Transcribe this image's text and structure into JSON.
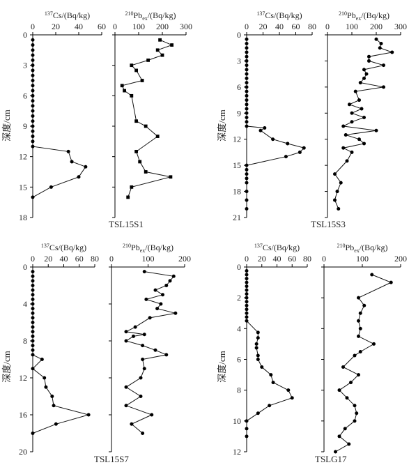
{
  "chart_data": [
    {
      "type": "line",
      "site": "TSL15S1",
      "ylabel": "深度/cm",
      "ylim": [
        18,
        0
      ],
      "yticks": [
        0,
        3,
        6,
        9,
        12,
        15,
        18
      ],
      "series": [
        {
          "name": "137Cs",
          "label_sup": "137",
          "label_main": "Cs/(Bq/kg)",
          "marker": "circle",
          "xlim": [
            0,
            60
          ],
          "xticks": [
            0,
            20,
            40,
            60
          ],
          "x": [
            0,
            0,
            0,
            0,
            0,
            0,
            0,
            0,
            0,
            0,
            0,
            0,
            0,
            0,
            0,
            0,
            0,
            0,
            0,
            0,
            0,
            0,
            31,
            34,
            46,
            40,
            16,
            0
          ],
          "y": [
            0.5,
            1.0,
            1.5,
            2.0,
            2.5,
            3.0,
            3.5,
            4.0,
            4.5,
            5.0,
            5.5,
            6.0,
            6.5,
            7.0,
            7.5,
            8.0,
            8.5,
            9.0,
            9.5,
            10.0,
            10.5,
            11.0,
            11.5,
            12.5,
            13.0,
            14.0,
            15.0,
            16.0
          ]
        },
        {
          "name": "210Pbex",
          "label_sup": "210",
          "label_main": "Pb",
          "label_sub": "ex",
          "label_tail": "/(Bq/kg)",
          "marker": "square",
          "xlim": [
            0,
            300
          ],
          "xticks": [
            0,
            100,
            200,
            300
          ],
          "x": [
            190,
            240,
            180,
            200,
            140,
            70,
            90,
            115,
            30,
            40,
            70,
            90,
            130,
            180,
            90,
            105,
            130,
            235,
            70,
            55
          ],
          "y": [
            0.5,
            1.0,
            1.5,
            2.0,
            2.5,
            3.0,
            3.5,
            4.5,
            5.0,
            5.5,
            6.0,
            8.5,
            9.0,
            10.0,
            11.5,
            12.5,
            13.5,
            14.0,
            15.0,
            16.0
          ]
        }
      ]
    },
    {
      "type": "line",
      "site": "TSL15S3",
      "ylabel": "深度/cm",
      "ylim": [
        21,
        0
      ],
      "yticks": [
        0,
        3,
        6,
        9,
        12,
        15,
        18,
        21
      ],
      "series": [
        {
          "name": "137Cs",
          "label_sup": "137",
          "label_main": "Cs/(Bq/kg)",
          "marker": "circle",
          "xlim": [
            0,
            80
          ],
          "xticks": [
            0,
            20,
            40,
            60,
            80
          ],
          "x": [
            0,
            0,
            0,
            0,
            0,
            0,
            0,
            0,
            0,
            0,
            0,
            0,
            0,
            0,
            0,
            0,
            0,
            0,
            0,
            0,
            0,
            22,
            17,
            32,
            50,
            70,
            65,
            48,
            0,
            0,
            0,
            0,
            0,
            0,
            0,
            0
          ],
          "y": [
            0.5,
            1.0,
            1.5,
            2.0,
            2.5,
            3.0,
            3.5,
            4.0,
            4.5,
            5.0,
            5.5,
            6.0,
            6.5,
            7.0,
            7.5,
            8.0,
            8.5,
            9.0,
            9.5,
            10.0,
            10.5,
            10.7,
            11.0,
            12.0,
            12.5,
            13.0,
            13.5,
            14.0,
            15.0,
            15.5,
            16.0,
            16.5,
            17.0,
            18.0,
            19.0,
            20.0
          ]
        },
        {
          "name": "210Pbex",
          "label_sup": "210",
          "label_main": "Pb",
          "label_sub": "ex",
          "label_tail": "/(Bq/kg)",
          "marker": "circle",
          "xlim": [
            0,
            300
          ],
          "xticks": [
            0,
            100,
            200,
            300
          ],
          "x": [
            200,
            220,
            215,
            265,
            170,
            170,
            230,
            150,
            160,
            150,
            135,
            230,
            115,
            130,
            90,
            140,
            100,
            150,
            100,
            65,
            200,
            75,
            130,
            150,
            65,
            100,
            80,
            30,
            55,
            40,
            30,
            45
          ],
          "y": [
            0.5,
            1.0,
            1.5,
            2.0,
            2.5,
            3.0,
            3.5,
            4.0,
            4.5,
            5.0,
            5.5,
            6.0,
            6.5,
            7.5,
            8.0,
            8.5,
            9.0,
            9.5,
            10.0,
            10.5,
            11.0,
            11.5,
            12.0,
            12.5,
            13.0,
            13.5,
            14.5,
            16.0,
            17.0,
            18.0,
            19.0,
            20.0
          ]
        }
      ]
    },
    {
      "type": "line",
      "site": "TSL15S7",
      "ylabel": "深度/cm",
      "ylim": [
        20,
        0
      ],
      "yticks": [
        0,
        4,
        8,
        12,
        16,
        20
      ],
      "series": [
        {
          "name": "137Cs",
          "label_sup": "137",
          "label_main": "Cs/(Bq/kg)",
          "marker": "circle",
          "xlim": [
            0,
            80
          ],
          "xticks": [
            0,
            20,
            40,
            60,
            80
          ],
          "x": [
            0,
            0,
            0,
            0,
            0,
            0,
            0,
            0,
            0,
            0,
            0,
            0,
            0,
            0,
            0,
            0,
            0,
            0,
            0,
            12,
            0,
            15,
            17,
            25,
            27,
            72,
            30,
            0
          ],
          "y": [
            0.5,
            1.0,
            1.5,
            2.0,
            2.5,
            3.0,
            3.5,
            4.0,
            4.5,
            5.0,
            5.5,
            6.0,
            6.5,
            7.0,
            7.5,
            8.0,
            8.5,
            9.0,
            9.5,
            10.0,
            11.0,
            12.0,
            13.0,
            14.0,
            15.0,
            16.0,
            17.0,
            18.0
          ]
        },
        {
          "name": "210Pbex",
          "label_sup": "210",
          "label_main": "Pb",
          "label_sub": "ex",
          "label_tail": "/(Bq/kg)",
          "marker": "circle",
          "xlim": [
            0,
            200
          ],
          "xticks": [
            0,
            100,
            200
          ],
          "x": [
            90,
            170,
            160,
            150,
            120,
            140,
            95,
            135,
            125,
            175,
            105,
            65,
            40,
            90,
            60,
            40,
            85,
            120,
            150,
            85,
            90,
            80,
            40,
            80,
            40,
            110,
            55,
            85
          ],
          "y": [
            0.5,
            1.0,
            1.5,
            2.0,
            2.5,
            3.0,
            3.5,
            4.0,
            4.5,
            5.0,
            5.5,
            6.5,
            7.0,
            7.3,
            7.5,
            8.0,
            8.5,
            9.0,
            9.5,
            10.0,
            11.0,
            12.0,
            13.0,
            14.0,
            15.0,
            16.0,
            17.0,
            18.0
          ]
        }
      ]
    },
    {
      "type": "line",
      "site": "TSLG17",
      "ylabel": "深度/cm",
      "ylim": [
        12,
        0
      ],
      "yticks": [
        0,
        2,
        4,
        6,
        8,
        10,
        12
      ],
      "series": [
        {
          "name": "137Cs",
          "label_sup": "137",
          "label_main": "Cs/(Bq/kg)",
          "marker": "circle",
          "xlim": [
            0,
            80
          ],
          "xticks": [
            0,
            20,
            40,
            60,
            80
          ],
          "x": [
            0,
            0,
            0,
            0,
            0,
            0,
            0,
            0,
            0,
            0,
            0,
            0,
            0,
            0,
            15,
            15,
            13,
            13,
            15,
            15,
            20,
            32,
            35,
            55,
            60,
            30,
            15,
            0,
            0,
            0
          ],
          "y": [
            0.25,
            0.5,
            0.75,
            1.0,
            1.25,
            1.5,
            1.75,
            2.0,
            2.25,
            2.5,
            2.75,
            3.0,
            3.25,
            3.5,
            4.25,
            4.6,
            5.0,
            5.25,
            5.75,
            6.0,
            6.5,
            7.0,
            7.5,
            8.0,
            8.5,
            9.0,
            9.5,
            10.0,
            10.5,
            11.0
          ]
        },
        {
          "name": "210Pbex",
          "label_sup": "210",
          "label_main": "Pb",
          "label_sub": "ex",
          "label_tail": "/(Bq/kg)",
          "marker": "circle",
          "xlim": [
            0,
            200
          ],
          "xticks": [
            0,
            100,
            200
          ],
          "x": [
            125,
            175,
            90,
            105,
            95,
            90,
            95,
            90,
            130,
            95,
            80,
            50,
            90,
            70,
            40,
            60,
            80,
            85,
            80,
            55,
            40,
            65,
            30
          ],
          "y": [
            0.5,
            1.0,
            2.0,
            2.5,
            3.0,
            3.5,
            4.0,
            4.5,
            5.0,
            5.5,
            5.75,
            6.5,
            7.0,
            7.5,
            8.0,
            8.5,
            9.0,
            9.5,
            10.0,
            10.5,
            11.0,
            11.5,
            12.0
          ]
        }
      ]
    }
  ]
}
